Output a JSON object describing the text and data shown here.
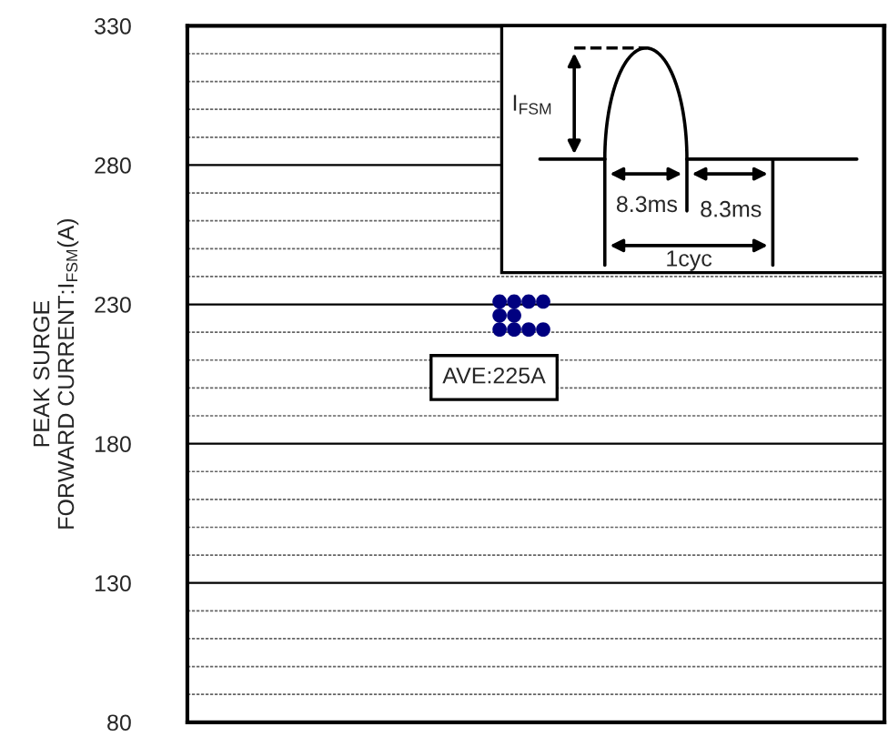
{
  "chart_data": {
    "type": "scatter",
    "ylabel": "PEAK SURGE\nFORWARD CURRENT:I$_{FSM}$(A)",
    "series": [
      {
        "color": "#000080",
        "values": [
          null,
          null,
          null,
          null,
          null,
          null,
          null,
          null,
          null,
          null,
          null,
          null,
          null,
          null,
          null,
          null,
          null,
          null,
          null,
          null,
          null,
          231,
          231,
          231,
          231,
          null,
          null,
          null,
          null,
          null,
          null,
          null,
          null,
          null,
          null,
          null,
          null,
          null,
          null,
          null,
          null,
          null,
          null,
          null,
          null,
          null,
          null,
          null
        ]
      },
      {
        "color": "#000080",
        "values": [
          null,
          null,
          null,
          null,
          null,
          null,
          null,
          null,
          null,
          null,
          null,
          null,
          null,
          null,
          null,
          null,
          null,
          null,
          null,
          null,
          null,
          226,
          226,
          null,
          null,
          null,
          null,
          null,
          null,
          null,
          null,
          null,
          null,
          null,
          null,
          null,
          null,
          null,
          null,
          null,
          null,
          null,
          null,
          null,
          null,
          null,
          null,
          null
        ]
      },
      {
        "color": "#000080",
        "values": [
          null,
          null,
          null,
          null,
          null,
          null,
          null,
          null,
          null,
          null,
          null,
          null,
          null,
          null,
          null,
          null,
          null,
          null,
          null,
          null,
          null,
          221,
          221,
          221,
          221,
          null,
          null,
          null,
          null,
          null,
          null,
          null,
          null,
          null,
          null,
          null,
          null,
          null,
          null,
          null,
          null,
          null,
          null,
          null,
          null,
          null,
          null,
          null
        ]
      }
    ],
    "categories": [
      null,
      null,
      null,
      null,
      null,
      null,
      null,
      null,
      null,
      null,
      null,
      null,
      null,
      null,
      null,
      null,
      null,
      null,
      null,
      null,
      null,
      null,
      null,
      null,
      null,
      null,
      null,
      null,
      null,
      null,
      null,
      null,
      null,
      null,
      null,
      null,
      null,
      null,
      null,
      null,
      null,
      null,
      null,
      null,
      null,
      null,
      null,
      null
    ],
    "ylim": [
      80,
      330
    ],
    "yticks": [
      80,
      {
        "value": 90,
        "label": null
      },
      {
        "value": 100,
        "label": null
      },
      {
        "value": 110,
        "label": null
      },
      {
        "value": 120,
        "label": null
      },
      130,
      {
        "value": 140,
        "label": null
      },
      {
        "value": 150,
        "label": null
      },
      {
        "value": 160,
        "label": null
      },
      {
        "value": 170,
        "label": null
      },
      180,
      {
        "value": 190,
        "label": null
      },
      {
        "value": 200,
        "label": null
      },
      {
        "value": 210,
        "label": null
      },
      {
        "value": 220,
        "label": null
      },
      230,
      {
        "value": 240,
        "label": null
      },
      {
        "value": 250,
        "label": null
      },
      {
        "value": 260,
        "label": null
      },
      {
        "value": 270,
        "label": null
      },
      280,
      {
        "value": 290,
        "label": null
      },
      {
        "value": 300,
        "label": null
      },
      {
        "value": 310,
        "label": null
      },
      {
        "value": 320,
        "label": null
      },
      330
    ],
    "tick_labels": "y",
    "grid": "y",
    "marker": "circle",
    "annotations": [
      "AVE:225A",
      "I$_{FSM}$",
      "8.3ms",
      "8.3ms",
      "1cyc"
    ]
  }
}
